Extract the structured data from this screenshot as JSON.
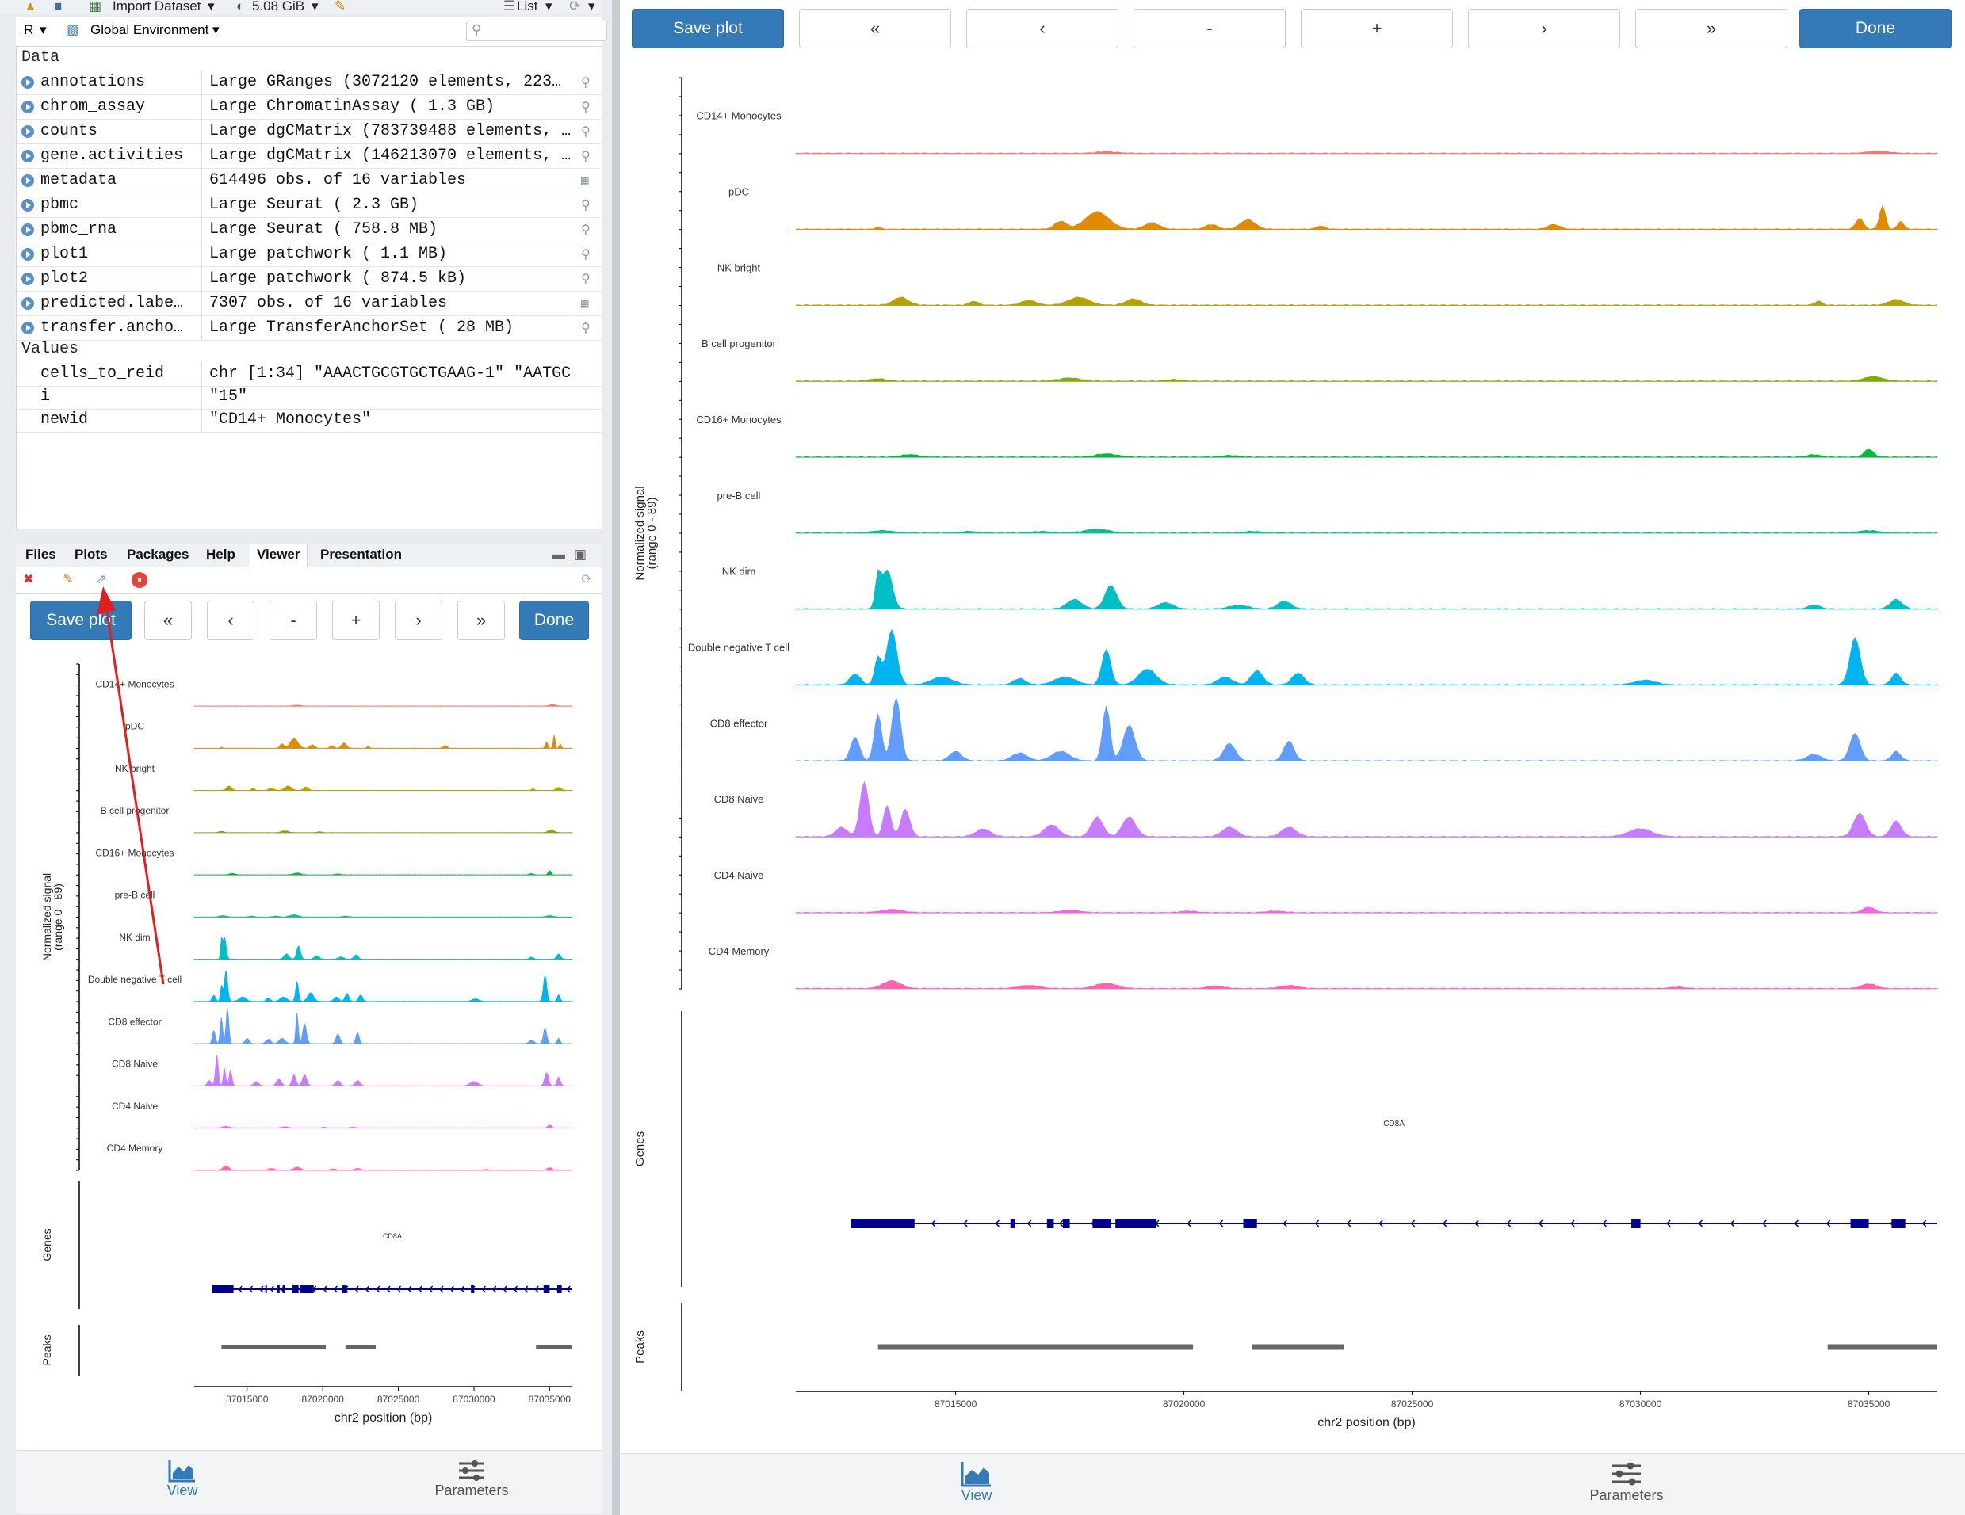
{
  "env_toolbar": {
    "import_label": "Import Dataset",
    "memory": "5.08 GiB",
    "list_label": "List",
    "r_label": "R",
    "env_label": "Global Environment"
  },
  "environment": {
    "data_header": "Data",
    "values_header": "Values",
    "data_rows": [
      {
        "name": "annotations",
        "value": "Large GRanges (3072120 elements, 223…",
        "icon": "magnifier-icon"
      },
      {
        "name": "chrom_assay",
        "value": "Large ChromatinAssay ( 1.3 GB)",
        "icon": "magnifier-icon"
      },
      {
        "name": "counts",
        "value": "Large dgCMatrix (783739488 elements, …",
        "icon": "magnifier-icon"
      },
      {
        "name": "gene.activities",
        "value": "Large dgCMatrix (146213070 elements, …",
        "icon": "magnifier-icon"
      },
      {
        "name": "metadata",
        "value": "614496 obs. of 16 variables",
        "icon": "table-icon"
      },
      {
        "name": "pbmc",
        "value": "Large Seurat ( 2.3 GB)",
        "icon": "magnifier-icon"
      },
      {
        "name": "pbmc_rna",
        "value": "Large Seurat ( 758.8 MB)",
        "icon": "magnifier-icon"
      },
      {
        "name": "plot1",
        "value": "Large patchwork ( 1.1 MB)",
        "icon": "magnifier-icon"
      },
      {
        "name": "plot2",
        "value": "Large patchwork ( 874.5 kB)",
        "icon": "magnifier-icon"
      },
      {
        "name": "predicted.labe…",
        "value": "7307 obs. of 16 variables",
        "icon": "table-icon"
      },
      {
        "name": "transfer.ancho…",
        "value": "Large TransferAnchorSet ( 28 MB)",
        "icon": "magnifier-icon"
      }
    ],
    "value_rows": [
      {
        "name": "cells_to_reid",
        "value": "chr [1:34] \"AAACTGCGTGCTGAAG-1\" \"AATGCC…"
      },
      {
        "name": "i",
        "value": "\"15\""
      },
      {
        "name": "newid",
        "value": "\"CD14+ Monocytes\""
      }
    ]
  },
  "pane_tabs": [
    "Files",
    "Plots",
    "Packages",
    "Help",
    "Viewer",
    "Presentation"
  ],
  "viewer": {
    "save_label": "Save plot",
    "first_label": "«",
    "prev_label": "‹",
    "minus_label": "-",
    "plus_label": "+",
    "next_label": "›",
    "last_label": "»",
    "done_label": "Done",
    "view_tab": "View",
    "params_tab": "Parameters"
  },
  "colors": {
    "primary": "#337ab7",
    "gene": "#00008b",
    "peak": "#666666",
    "annotation_arrow": "#e02020"
  },
  "chart_data": {
    "type": "area",
    "ylabel": "Normalized signal\n(range 0 - 89)",
    "xlabel": "chr2 position (bp)",
    "ylim": [
      0,
      89
    ],
    "x_range": [
      87011500,
      87036500
    ],
    "x_ticks": [
      "87015000",
      "87020000",
      "87025000",
      "87030000",
      "87035000"
    ],
    "x_tick_values": [
      87015000,
      87020000,
      87025000,
      87030000,
      87035000
    ],
    "genes_label": "Genes",
    "peaks_label": "Peaks",
    "gene": {
      "name": "CD8A",
      "start": 87012700,
      "end": 87036500,
      "exons": [
        [
          87012700,
          87014100
        ],
        [
          87016200,
          87016300
        ],
        [
          87017000,
          87017150
        ],
        [
          87017350,
          87017500
        ],
        [
          87018000,
          87018400
        ],
        [
          87018500,
          87019400
        ],
        [
          87021300,
          87021600
        ],
        [
          87029800,
          87030000
        ],
        [
          87034600,
          87035000
        ],
        [
          87035500,
          87035800
        ]
      ]
    },
    "peaks": [
      [
        87013300,
        87020200
      ],
      [
        87021500,
        87023500
      ],
      [
        87034100,
        87036500
      ]
    ],
    "series": [
      {
        "name": "CD14+ Monocytes",
        "color": "#f8766d",
        "peaks": [
          [
            87018300,
            2,
            700
          ],
          [
            87035200,
            3,
            700
          ]
        ]
      },
      {
        "name": "pDC",
        "color": "#e28a00",
        "peaks": [
          [
            87013300,
            3,
            150
          ],
          [
            87017300,
            10,
            400
          ],
          [
            87018100,
            22,
            800
          ],
          [
            87019300,
            8,
            500
          ],
          [
            87020600,
            6,
            400
          ],
          [
            87021400,
            12,
            500
          ],
          [
            87023000,
            4,
            300
          ],
          [
            87028100,
            6,
            400
          ],
          [
            87034800,
            14,
            250
          ],
          [
            87035300,
            30,
            200
          ],
          [
            87035700,
            10,
            200
          ]
        ]
      },
      {
        "name": "NK bright",
        "color": "#b79f00",
        "peaks": [
          [
            87013800,
            10,
            500
          ],
          [
            87015400,
            5,
            300
          ],
          [
            87016600,
            6,
            500
          ],
          [
            87017700,
            10,
            700
          ],
          [
            87018900,
            8,
            500
          ],
          [
            87033900,
            5,
            250
          ],
          [
            87035600,
            7,
            500
          ]
        ]
      },
      {
        "name": "B cell progenitor",
        "color": "#7cae00",
        "peaks": [
          [
            87013300,
            3,
            500
          ],
          [
            87017500,
            4,
            700
          ],
          [
            87019800,
            2,
            500
          ],
          [
            87035100,
            6,
            600
          ]
        ]
      },
      {
        "name": "CD16+ Monocytes",
        "color": "#00ba38",
        "peaks": [
          [
            87014000,
            3,
            600
          ],
          [
            87018300,
            4,
            700
          ],
          [
            87021000,
            2,
            500
          ],
          [
            87033800,
            3,
            400
          ],
          [
            87035000,
            10,
            300
          ]
        ]
      },
      {
        "name": "pre-B cell",
        "color": "#00c08b",
        "peaks": [
          [
            87013400,
            3,
            700
          ],
          [
            87015300,
            2,
            500
          ],
          [
            87016900,
            2,
            600
          ],
          [
            87018100,
            5,
            800
          ],
          [
            87021500,
            2,
            600
          ],
          [
            87035000,
            3,
            700
          ]
        ]
      },
      {
        "name": "NK dim",
        "color": "#00bfc4",
        "peaks": [
          [
            87013500,
            50,
            350
          ],
          [
            87013300,
            40,
            180
          ],
          [
            87017600,
            12,
            500
          ],
          [
            87018400,
            30,
            400
          ],
          [
            87019600,
            8,
            500
          ],
          [
            87021200,
            5,
            600
          ],
          [
            87022200,
            10,
            450
          ],
          [
            87033800,
            5,
            400
          ],
          [
            87035600,
            12,
            400
          ]
        ]
      },
      {
        "name": "Double negative T cell",
        "color": "#00b4f0",
        "peaks": [
          [
            87012800,
            14,
            350
          ],
          [
            87013600,
            70,
            350
          ],
          [
            87013300,
            35,
            220
          ],
          [
            87014700,
            10,
            700
          ],
          [
            87016400,
            8,
            400
          ],
          [
            87017400,
            10,
            700
          ],
          [
            87018300,
            45,
            300
          ],
          [
            87019200,
            20,
            600
          ],
          [
            87020900,
            10,
            500
          ],
          [
            87021600,
            18,
            400
          ],
          [
            87022500,
            15,
            400
          ],
          [
            87030100,
            6,
            700
          ],
          [
            87034700,
            60,
            350
          ],
          [
            87035600,
            15,
            300
          ]
        ]
      },
      {
        "name": "CD8 effector",
        "color": "#619cff",
        "peaks": [
          [
            87012800,
            30,
            300
          ],
          [
            87013300,
            60,
            250
          ],
          [
            87013700,
            80,
            300
          ],
          [
            87015000,
            12,
            400
          ],
          [
            87016400,
            10,
            500
          ],
          [
            87017300,
            12,
            600
          ],
          [
            87018300,
            70,
            250
          ],
          [
            87018800,
            45,
            400
          ],
          [
            87021000,
            22,
            400
          ],
          [
            87022300,
            25,
            350
          ],
          [
            87033800,
            8,
            500
          ],
          [
            87034700,
            35,
            350
          ],
          [
            87035600,
            12,
            300
          ]
        ]
      },
      {
        "name": "CD8 Naive",
        "color": "#c77cff",
        "peaks": [
          [
            87012500,
            12,
            400
          ],
          [
            87013000,
            70,
            300
          ],
          [
            87013500,
            40,
            250
          ],
          [
            87013900,
            35,
            300
          ],
          [
            87015600,
            10,
            500
          ],
          [
            87017100,
            15,
            500
          ],
          [
            87018100,
            25,
            400
          ],
          [
            87018800,
            25,
            450
          ],
          [
            87021000,
            12,
            500
          ],
          [
            87022300,
            12,
            500
          ],
          [
            87030000,
            10,
            800
          ],
          [
            87034800,
            30,
            400
          ],
          [
            87035600,
            20,
            350
          ]
        ]
      },
      {
        "name": "CD4 Naive",
        "color": "#f564e3",
        "peaks": [
          [
            87013600,
            4,
            700
          ],
          [
            87017500,
            3,
            700
          ],
          [
            87020100,
            2,
            500
          ],
          [
            87022000,
            2,
            600
          ],
          [
            87035000,
            7,
            400
          ]
        ]
      },
      {
        "name": "CD4 Memory",
        "color": "#ff64b0",
        "peaks": [
          [
            87013600,
            10,
            600
          ],
          [
            87016600,
            4,
            700
          ],
          [
            87018300,
            7,
            700
          ],
          [
            87020700,
            3,
            600
          ],
          [
            87022300,
            4,
            600
          ],
          [
            87030800,
            2,
            500
          ],
          [
            87035000,
            6,
            500
          ]
        ]
      }
    ]
  }
}
